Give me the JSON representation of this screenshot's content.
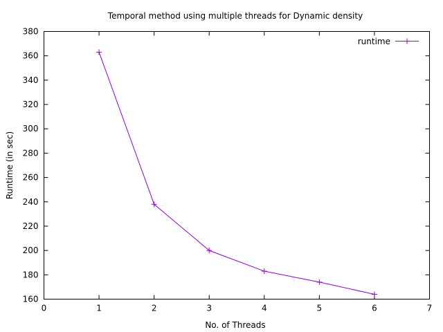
{
  "chart_data": {
    "type": "line",
    "title": "Temporal method using multiple threads for Dynamic density",
    "xlabel": "No. of Threads",
    "ylabel": "Runtime (in sec)",
    "xlim": [
      0,
      7
    ],
    "ylim": [
      160,
      380
    ],
    "xticks": [
      0,
      1,
      2,
      3,
      4,
      5,
      6,
      7
    ],
    "yticks": [
      160,
      180,
      200,
      220,
      240,
      260,
      280,
      300,
      320,
      340,
      360,
      380
    ],
    "grid": false,
    "legend": "top-right",
    "series": [
      {
        "name": "runtime",
        "color": "#9400d3",
        "marker": "plus",
        "x": [
          1,
          2,
          3,
          4,
          5,
          6
        ],
        "y": [
          363,
          238,
          200,
          183,
          174,
          164
        ]
      }
    ]
  }
}
